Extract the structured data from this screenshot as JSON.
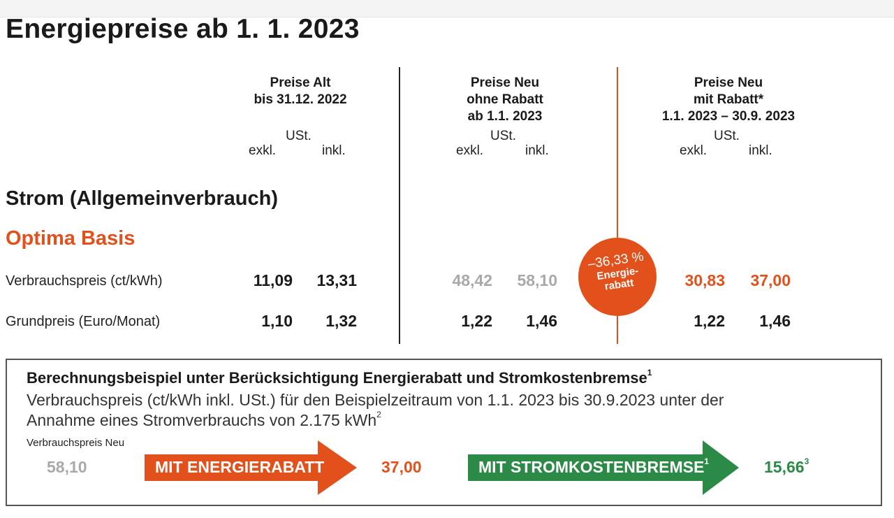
{
  "title": "Energiepreise ab 1. 1. 2023",
  "columns": {
    "alt": {
      "line1": "Preise Alt",
      "line2": "bis 31.12. 2022",
      "ust": "USt.",
      "exkl": "exkl.",
      "inkl": "inkl."
    },
    "neu": {
      "line1": "Preise Neu",
      "line2": "ohne Rabatt",
      "line3": "ab 1.1. 2023",
      "ust": "USt.",
      "exkl": "exkl.",
      "inkl": "inkl."
    },
    "rabatt": {
      "line1": "Preise Neu",
      "line2": "mit Rabatt*",
      "line3": "1.1. 2023 – 30.9. 2023",
      "ust": "USt.",
      "exkl": "exkl.",
      "inkl": "inkl."
    }
  },
  "section_title": "Strom (Allgemeinverbrauch)",
  "product": "Optima Basis",
  "rows": [
    {
      "label": "Verbrauchspreis (ct/kWh)",
      "alt_exkl": "11,09",
      "alt_inkl": "13,31",
      "neu_exkl": "48,42",
      "neu_inkl": "58,10",
      "rab_exkl": "30,83",
      "rab_inkl": "37,00"
    },
    {
      "label": "Grundpreis (Euro/Monat)",
      "alt_exkl": "1,10",
      "alt_inkl": "1,32",
      "neu_exkl": "1,22",
      "neu_inkl": "1,46",
      "rab_exkl": "1,22",
      "rab_inkl": "1,46"
    }
  ],
  "badge": {
    "percent": "–36,33 %",
    "line1": "Energie-",
    "line2": "rabatt"
  },
  "example": {
    "title": "Berechnungsbeispiel unter Berücksichtigung Energierabatt und Stromkostenbremse",
    "title_sup": "1",
    "text_line1": "Verbrauchspreis (ct/kWh inkl. USt.) für den Beispielzeitraum von 1.1. 2023 bis 30.9.2023 unter der",
    "text_line2": "Annahme eines Stromverbrauchs von 2.175 kWh",
    "text_sup": "2",
    "small_label": "Verbrauchspreis Neu",
    "value_start": "58,10",
    "arrow1": "MIT ENERGIERABATT",
    "value_mid": "37,00",
    "arrow2": "MIT STROMKOSTENBREMSE",
    "arrow2_sup": "1",
    "value_end": "15,66",
    "value_end_sup": "3"
  },
  "colors": {
    "orange": "#e2511b",
    "green": "#2b8a46",
    "gray": "#a9a9a9",
    "divider": "#222222"
  }
}
